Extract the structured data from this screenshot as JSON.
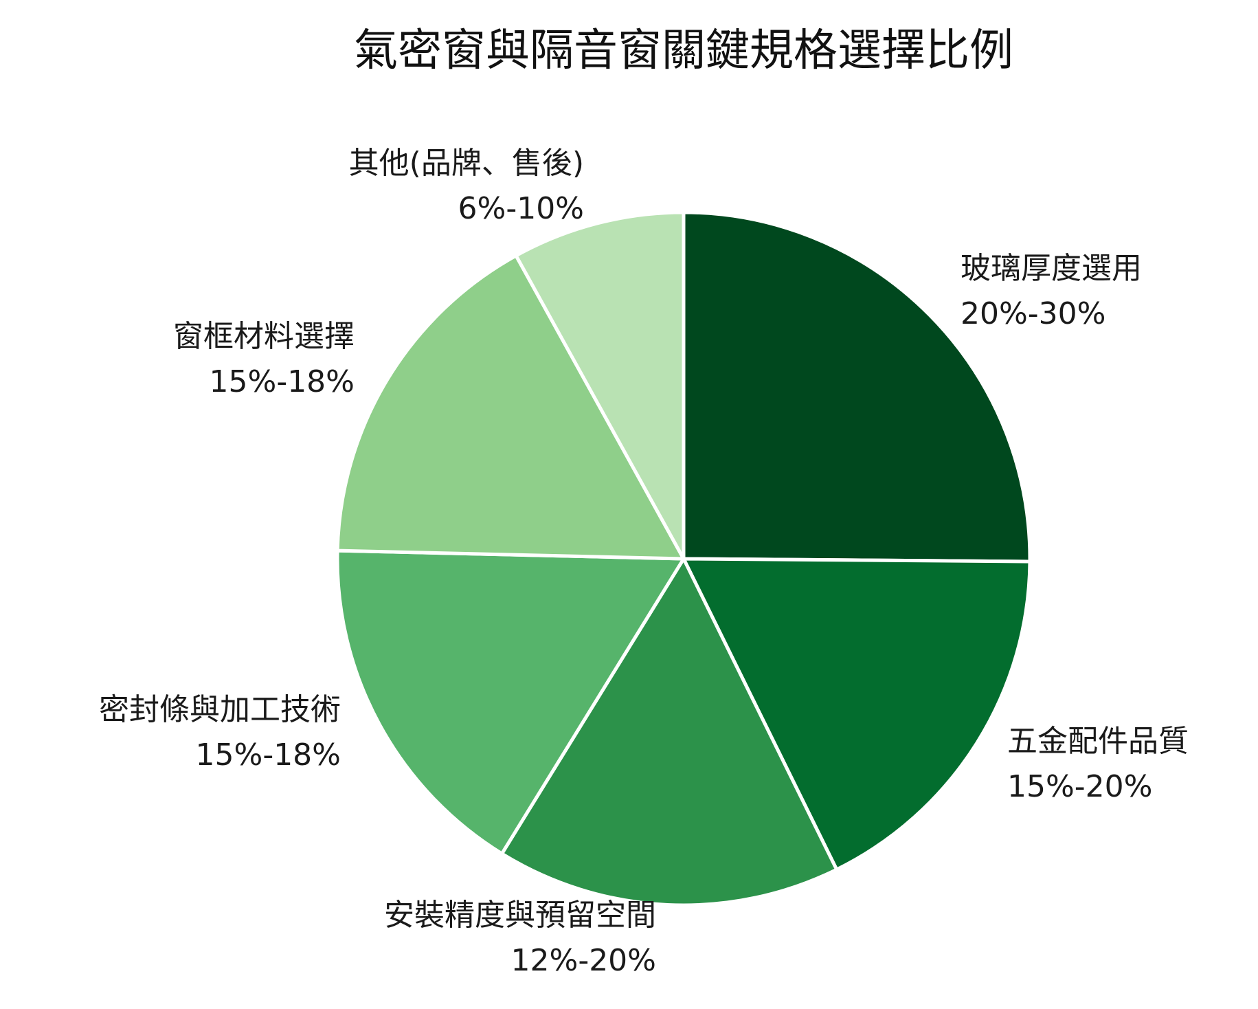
{
  "chart_data": {
    "type": "pie",
    "title": "氣密窗與隔音窗關鍵規格選擇比例",
    "slices": [
      {
        "label": "玻璃厚度選用",
        "range_text": "20%-30%",
        "value": 25,
        "color": "#00481e"
      },
      {
        "label": "五金配件品質",
        "range_text": "15%-20%",
        "value": 17.5,
        "color": "#036d2e"
      },
      {
        "label": "安裝精度與預留空間",
        "range_text": "12%-20%",
        "value": 16,
        "color": "#2c924a"
      },
      {
        "label": "密封條與加工技術",
        "range_text": "15%-18%",
        "value": 16.5,
        "color": "#56b46b"
      },
      {
        "label": "窗框材料選擇",
        "range_text": "15%-18%",
        "value": 16.5,
        "color": "#8fcf8a"
      },
      {
        "label": "其他(品牌、售後)",
        "range_text": "6%-10%",
        "value": 8,
        "color": "#b9e2b3"
      }
    ],
    "start_angle": "12 o'clock",
    "direction": "clockwise",
    "slice_border_color": "#ffffff"
  }
}
